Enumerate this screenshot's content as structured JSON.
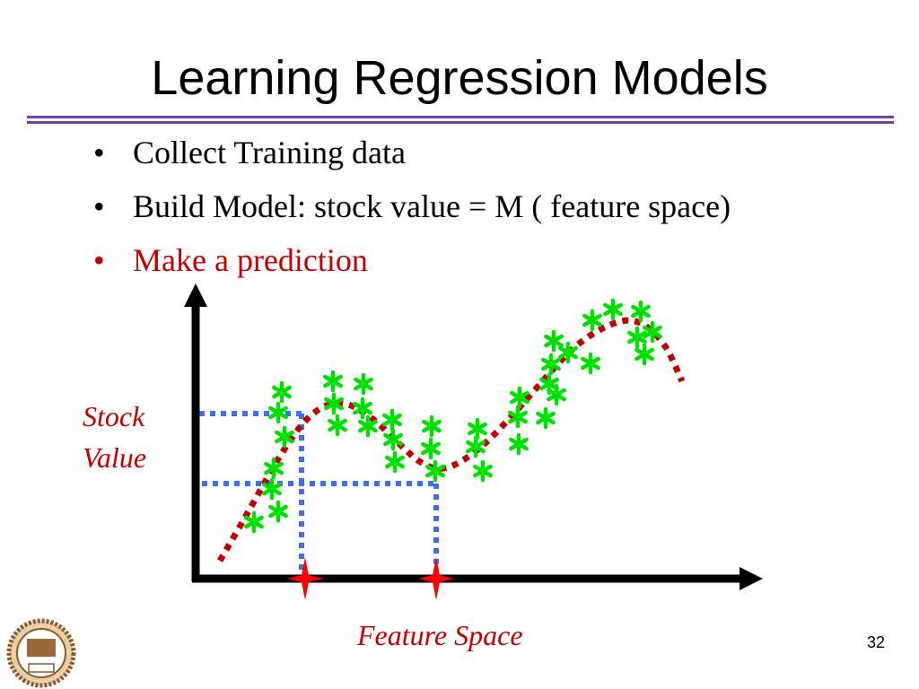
{
  "slide": {
    "title": "Learning Regression Models",
    "bullets": [
      {
        "text": "Collect Training data",
        "color": "#000000"
      },
      {
        "text": "Build Model: stock value = M ( feature space)",
        "color": "#000000"
      },
      {
        "text": "Make a prediction",
        "color": "#c00000"
      }
    ],
    "bullet_symbol": "•",
    "page_number": "32",
    "accent_color": "#7b3f9e"
  },
  "diagram": {
    "y_label_line1": "Stock",
    "y_label_line2": "Value",
    "x_label": "Feature Space",
    "colors": {
      "data_points": "#00e000",
      "model_curve": "#c00000",
      "guide_lines": "#3f6fe8",
      "prediction_markers": "#ff0000",
      "axes": "#000000"
    }
  },
  "logo": {
    "icon": "university-seal-icon",
    "text": "1896"
  }
}
